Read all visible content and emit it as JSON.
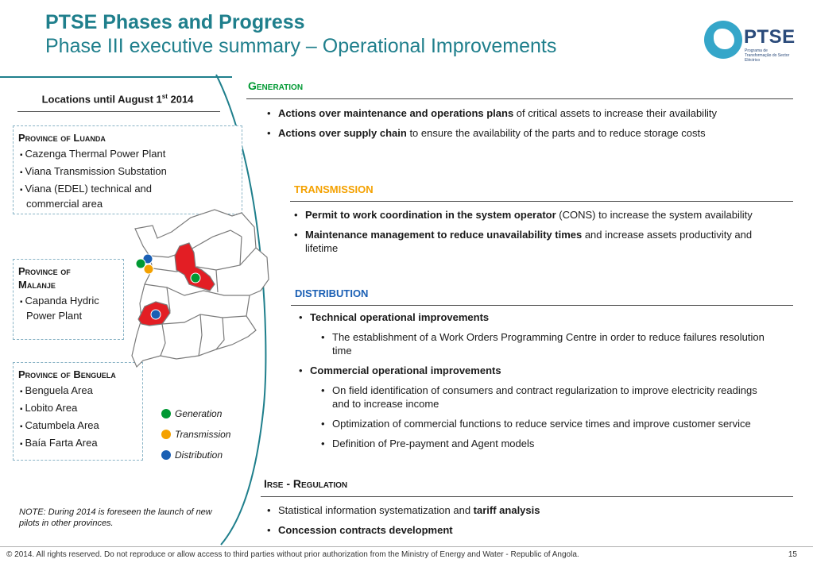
{
  "header": {
    "title": "PTSE Phases and Progress",
    "subtitle": "Phase III executive summary – Operational Improvements",
    "logo_text": "PTSE",
    "logo_subtext": "Programa de Transformação do Sector Eléctrico"
  },
  "colors": {
    "teal": "#1f7f8c",
    "green": "#009933",
    "orange": "#f4a100",
    "blue": "#1a5fb4",
    "red": "#e31e24"
  },
  "locations": {
    "title": "Locations until August 1",
    "title_sup": "st",
    "title_year": " 2014",
    "provinces": [
      {
        "name": "Province of Luanda",
        "items": [
          "Cazenga Thermal Power Plant",
          "Viana Transmission Substation",
          "Viana (EDEL) technical and commercial area"
        ]
      },
      {
        "name": "Province of Malanje",
        "items": [
          "Capanda Hydric Power Plant"
        ]
      },
      {
        "name": "Province of Benguela",
        "items": [
          "Benguela Area",
          "Lobito Area",
          "Catumbela Area",
          "Baía Farta Area"
        ]
      }
    ]
  },
  "legend": [
    {
      "label": "Generation",
      "icon": "green-dot",
      "color": "#009933"
    },
    {
      "label": "Transmission",
      "icon": "orange-dot",
      "color": "#f4a100"
    },
    {
      "label": "Distribution",
      "icon": "blue-dot",
      "color": "#1a5fb4"
    }
  ],
  "note": "NOTE: During 2014 is foreseen the launch of new pilots in other provinces.",
  "sections": {
    "generation": {
      "title": "Generation",
      "b1_bold": "Actions over maintenance and operations plans",
      "b1_rest": " of critical assets to increase their availability",
      "b2_bold": "Actions over supply chain",
      "b2_rest": " to ensure the availability of the parts and to reduce storage costs"
    },
    "transmission": {
      "title": "TRANSMISSION",
      "b1_bold": "Permit to work coordination in the system operator",
      "b1_rest": " (CONS) to increase the system availability",
      "b2_bold": "Maintenance management to reduce unavailability times",
      "b2_rest": " and increase assets productivity and lifetime"
    },
    "distribution": {
      "title": "DISTRIBUTION",
      "b1": "Technical operational improvements",
      "b1_sub1": "The establishment of a Work Orders Programming Centre in order to reduce failures resolution time",
      "b2": "Commercial operational improvements",
      "b2_sub1": "On field identification of consumers and contract regularization to improve electricity readings and to increase income",
      "b2_sub2": "Optimization of commercial functions to reduce service times and improve customer service",
      "b2_sub3": "Definition of Pre-payment and Agent models"
    },
    "irse": {
      "title": "Irse - Regulation",
      "b1_text": "Statistical information systematization and ",
      "b1_bold": "tariff analysis",
      "b2_bold": "Concession contracts development"
    }
  },
  "footer": {
    "text": "© 2014. All rights reserved. Do not reproduce or allow access to third parties without prior authorization from the Ministry of Energy and Water - Republic of Angola.",
    "page": "15"
  }
}
